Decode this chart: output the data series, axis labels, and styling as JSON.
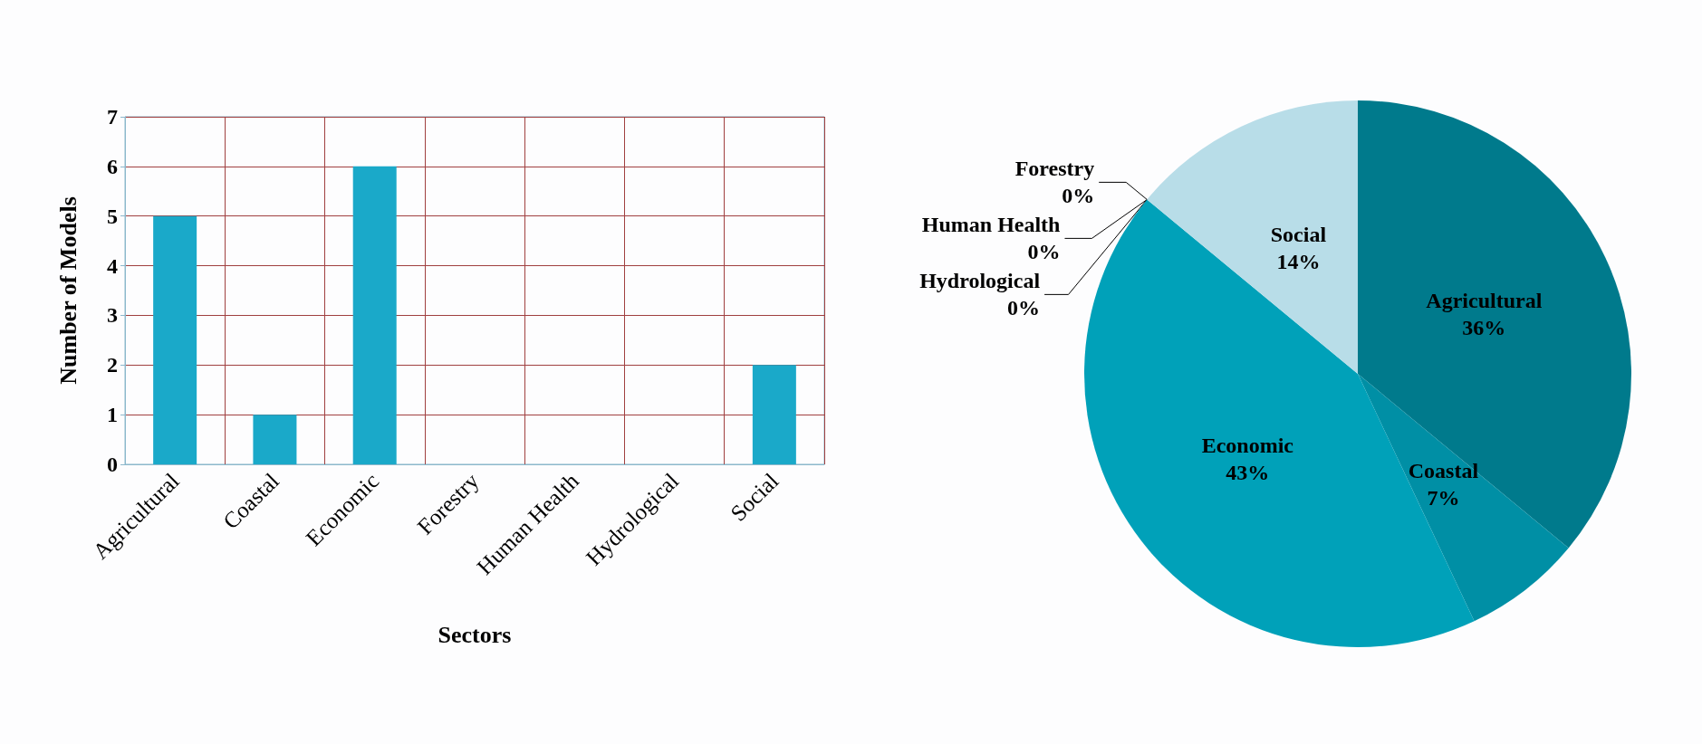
{
  "chart_data": [
    {
      "type": "bar",
      "xlabel": "Sectors",
      "ylabel": "Number of Models",
      "categories": [
        "Agricultural",
        "Coastal",
        "Economic",
        "Forestry",
        "Human Health",
        "Hydrological",
        "Social"
      ],
      "values": [
        5,
        1,
        6,
        0,
        0,
        0,
        2
      ],
      "color": "#1aa9c9",
      "ylim": [
        0,
        7
      ],
      "yticks": [
        0,
        1,
        2,
        3,
        4,
        5,
        6,
        7
      ],
      "grid": true
    },
    {
      "type": "pie",
      "categories": [
        "Agricultural",
        "Coastal",
        "Economic",
        "Forestry",
        "Human Health",
        "Hydrological",
        "Social"
      ],
      "values": [
        36,
        7,
        43,
        0,
        0,
        0,
        14
      ],
      "colors": [
        "#007a8c",
        "#008fa5",
        "#00a1b9",
        "#3fb4c8",
        "#6fc6d6",
        "#95d2df",
        "#b8dde8"
      ],
      "value_labels": [
        "36%",
        "7%",
        "43%",
        "0%",
        "0%",
        "0%",
        "14%"
      ]
    }
  ]
}
